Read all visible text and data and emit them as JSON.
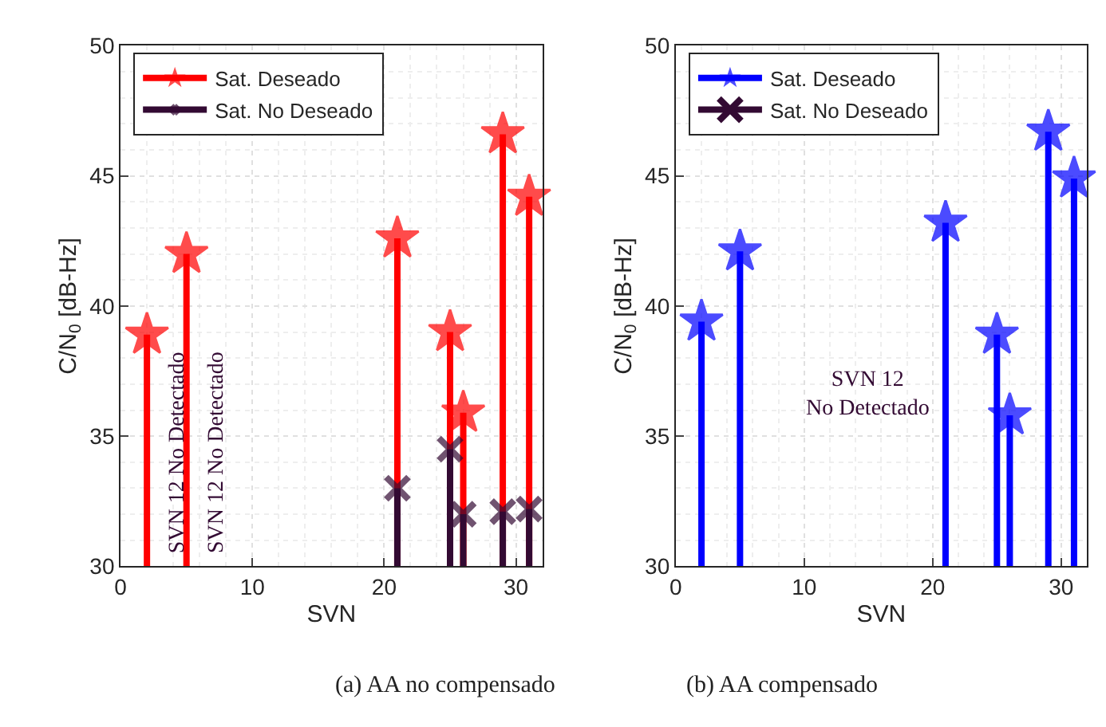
{
  "chart_data": [
    {
      "type": "lollipop",
      "xlabel": "SVN",
      "ylabel": "C/N$_{0}$ [dB-Hz]",
      "xlim": [
        0,
        32
      ],
      "ylim": [
        30,
        50
      ],
      "xticks": [
        0,
        10,
        20,
        30
      ],
      "yticks": [
        30,
        35,
        40,
        45,
        50
      ],
      "grid": true,
      "legend": "top left",
      "series": [
        {
          "name": "Sat. Deseado",
          "color": "#ff0000",
          "marker": "star",
          "x": [
            2,
            5,
            21,
            25,
            26,
            29,
            31
          ],
          "values": [
            38.9,
            42.0,
            42.6,
            39.0,
            35.9,
            46.6,
            44.2
          ]
        },
        {
          "name": "Sat. No Deseado",
          "color": "#330a33",
          "marker": "cross",
          "x": [
            21,
            25,
            26,
            29,
            31
          ],
          "values": [
            33.0,
            34.5,
            32.0,
            32.1,
            32.2
          ]
        }
      ],
      "annotations": [
        "SVN 12 No Detectado",
        "SVN 12 No Detectado",
        "(a) AA no compensado"
      ]
    },
    {
      "type": "lollipop",
      "xlabel": "SVN",
      "ylabel": "C/N$_{0}$ [dB-Hz]",
      "xlim": [
        0,
        32
      ],
      "ylim": [
        30,
        50
      ],
      "xticks": [
        0,
        10,
        20,
        30
      ],
      "yticks": [
        30,
        35,
        40,
        45,
        50
      ],
      "grid": true,
      "legend": "top left",
      "series": [
        {
          "name": "Sat. Deseado",
          "color": "#0000ff",
          "marker": "star",
          "x": [
            2,
            5,
            21,
            25,
            26,
            29,
            31
          ],
          "values": [
            39.4,
            42.1,
            43.2,
            38.9,
            35.8,
            46.7,
            44.9
          ]
        },
        {
          "name": "Sat. No Deseado",
          "color": "#330a33",
          "marker": "cross"
        }
      ],
      "annotations": [
        "SVN 12\nNo Detectado",
        "(b) AA compensado"
      ]
    }
  ]
}
